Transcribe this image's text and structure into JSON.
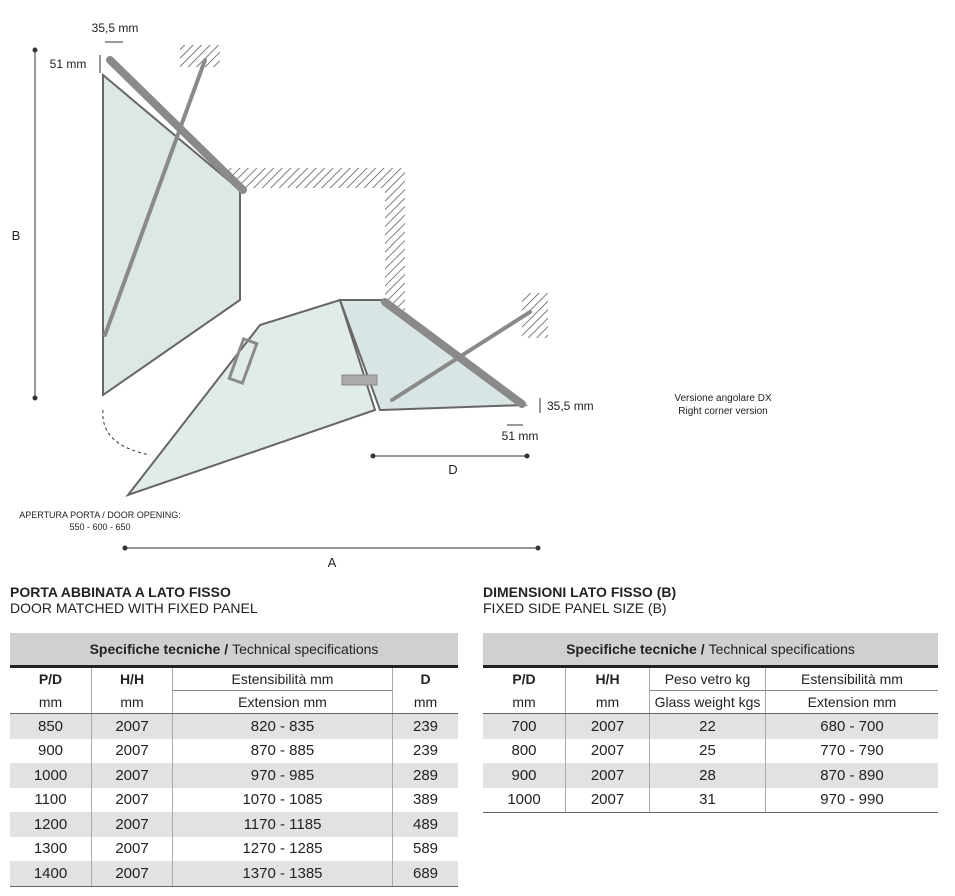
{
  "diagram": {
    "labels": {
      "top_width": "35,5 mm",
      "top_height": "51 mm",
      "height": "B",
      "right_depth": "35,5 mm",
      "right_width": "51 mm",
      "d": "D",
      "a": "A",
      "opening_title": "APERTURA PORTA / DOOR OPENING:",
      "opening_values": "550 - 600 - 650",
      "version_it": "Versione angolare DX",
      "version_en": "Right corner version"
    }
  },
  "table_left": {
    "title": "PORTA ABBINATA A LATO FISSO",
    "subtitle": "DOOR MATCHED WITH FIXED PANEL",
    "caption_bold": "Specifiche tecniche /",
    "caption": "Technical specifications",
    "header1": [
      "P/D",
      "H/H",
      "Estensibilità mm",
      "D"
    ],
    "header2": [
      "mm",
      "mm",
      "Extension mm",
      "mm"
    ],
    "rows": [
      [
        "850",
        "2007",
        "820 - 835",
        "239"
      ],
      [
        "900",
        "2007",
        "870 - 885",
        "239"
      ],
      [
        "1000",
        "2007",
        "970 - 985",
        "289"
      ],
      [
        "1100",
        "2007",
        "1070 - 1085",
        "389"
      ],
      [
        "1200",
        "2007",
        "1170 - 1185",
        "489"
      ],
      [
        "1300",
        "2007",
        "1270 - 1285",
        "589"
      ],
      [
        "1400",
        "2007",
        "1370 - 1385",
        "689"
      ]
    ]
  },
  "table_right": {
    "title": "DIMENSIONI LATO FISSO (B)",
    "subtitle": "FIXED SIDE PANEL SIZE (B)",
    "caption_bold": "Specifiche tecniche /",
    "caption": "Technical specifications",
    "header1": [
      "P/D",
      "H/H",
      "Peso vetro kg",
      "Estensibilità mm"
    ],
    "header2": [
      "mm",
      "mm",
      "Glass weight kgs",
      "Extension mm"
    ],
    "rows": [
      [
        "700",
        "2007",
        "22",
        "680 - 700"
      ],
      [
        "800",
        "2007",
        "25",
        "770 - 790"
      ],
      [
        "900",
        "2007",
        "28",
        "870 - 890"
      ],
      [
        "1000",
        "2007",
        "31",
        "970 - 990"
      ]
    ]
  }
}
